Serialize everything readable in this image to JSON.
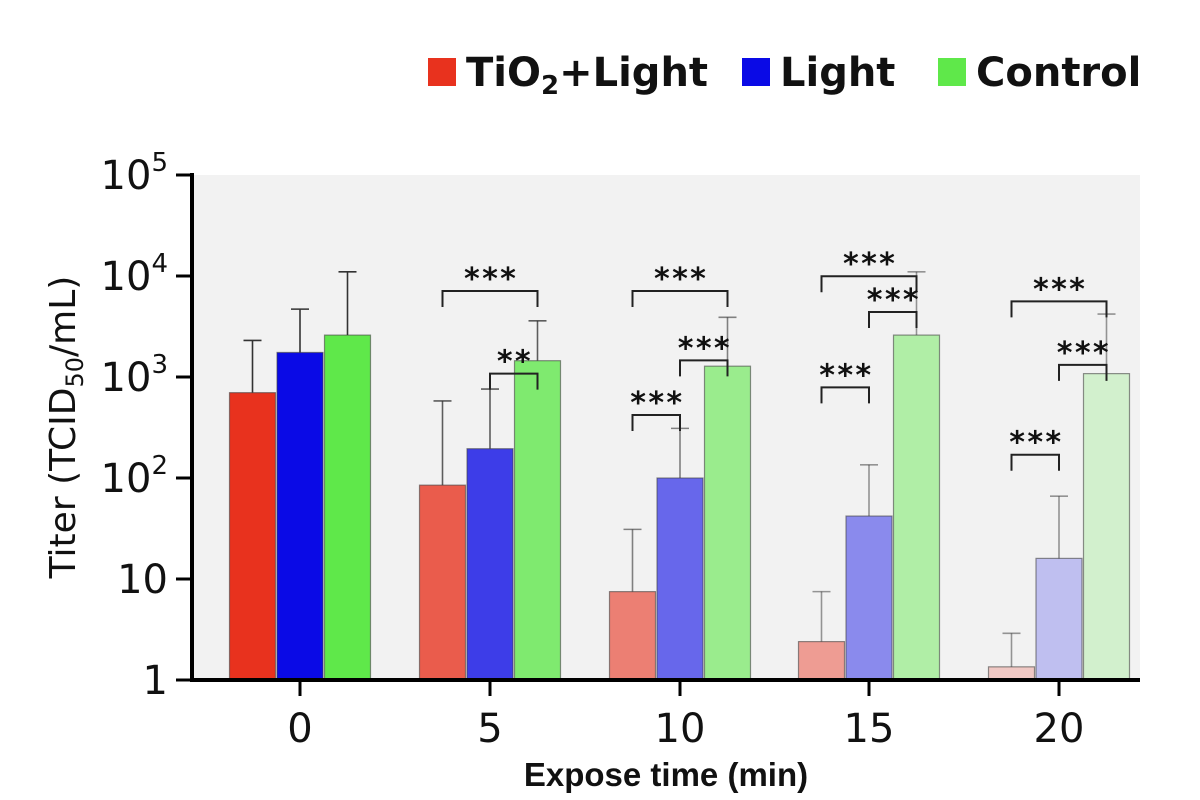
{
  "chart_data": {
    "type": "bar",
    "xlabel": "Expose time (min)",
    "ylabel": "Titer (TCID50/mL)",
    "ylabel_parts": {
      "pre": "Titer (TCID",
      "sub": "50",
      "post": "/mL)"
    },
    "yscale": "log",
    "ylim": [
      1,
      100000
    ],
    "yticks": [
      {
        "value": 1,
        "base": "1",
        "exp": ""
      },
      {
        "value": 10,
        "base": "10",
        "exp": ""
      },
      {
        "value": 100,
        "base": "10",
        "exp": "2"
      },
      {
        "value": 1000,
        "base": "10",
        "exp": "3"
      },
      {
        "value": 10000,
        "base": "10",
        "exp": "4"
      },
      {
        "value": 100000,
        "base": "10",
        "exp": "5"
      }
    ],
    "categories": [
      "0",
      "5",
      "10",
      "15",
      "20"
    ],
    "legend_position": "top-right",
    "series": [
      {
        "name": "TiO2+Light",
        "legend_parts": {
          "pre": "TiO",
          "sub": "2",
          "post": "+Light"
        },
        "color": "#e8321e",
        "values": [
          700,
          85,
          7.5,
          2.4,
          1.35
        ],
        "errors_upper": [
          2300,
          580,
          31,
          7.5,
          2.9
        ]
      },
      {
        "name": "Light",
        "color": "#0a0ae6",
        "values": [
          1750,
          195,
          100,
          42,
          16
        ],
        "errors_upper": [
          4700,
          760,
          310,
          135,
          66
        ]
      },
      {
        "name": "Control",
        "color": "#5fe84a",
        "values": [
          2600,
          1450,
          1280,
          2600,
          1080
        ],
        "errors_upper": [
          11000,
          3600,
          3900,
          11000,
          4200
        ]
      }
    ],
    "bar_opacity": [
      1,
      0.78,
      0.6,
      0.45,
      0.22
    ],
    "significance": [
      {
        "category": "5",
        "from": 0,
        "to": 2,
        "y": 7100,
        "label": "***"
      },
      {
        "category": "5",
        "from": 1,
        "to": 2,
        "y": 1080,
        "label": "**"
      },
      {
        "category": "10",
        "from": 0,
        "to": 2,
        "y": 7100,
        "label": "***"
      },
      {
        "category": "10",
        "from": 1,
        "to": 2,
        "y": 1460,
        "label": "***"
      },
      {
        "category": "10",
        "from": 0,
        "to": 1,
        "y": 420,
        "label": "***"
      },
      {
        "category": "15",
        "from": 0,
        "to": 2,
        "y": 9950,
        "label": "***"
      },
      {
        "category": "15",
        "from": 1,
        "to": 2,
        "y": 4400,
        "label": "***"
      },
      {
        "category": "15",
        "from": 0,
        "to": 1,
        "y": 790,
        "label": "***"
      },
      {
        "category": "20",
        "from": 0,
        "to": 2,
        "y": 5600,
        "label": "***"
      },
      {
        "category": "20",
        "from": 1,
        "to": 2,
        "y": 1320,
        "label": "***"
      },
      {
        "category": "20",
        "from": 0,
        "to": 1,
        "y": 170,
        "label": "***"
      }
    ]
  }
}
